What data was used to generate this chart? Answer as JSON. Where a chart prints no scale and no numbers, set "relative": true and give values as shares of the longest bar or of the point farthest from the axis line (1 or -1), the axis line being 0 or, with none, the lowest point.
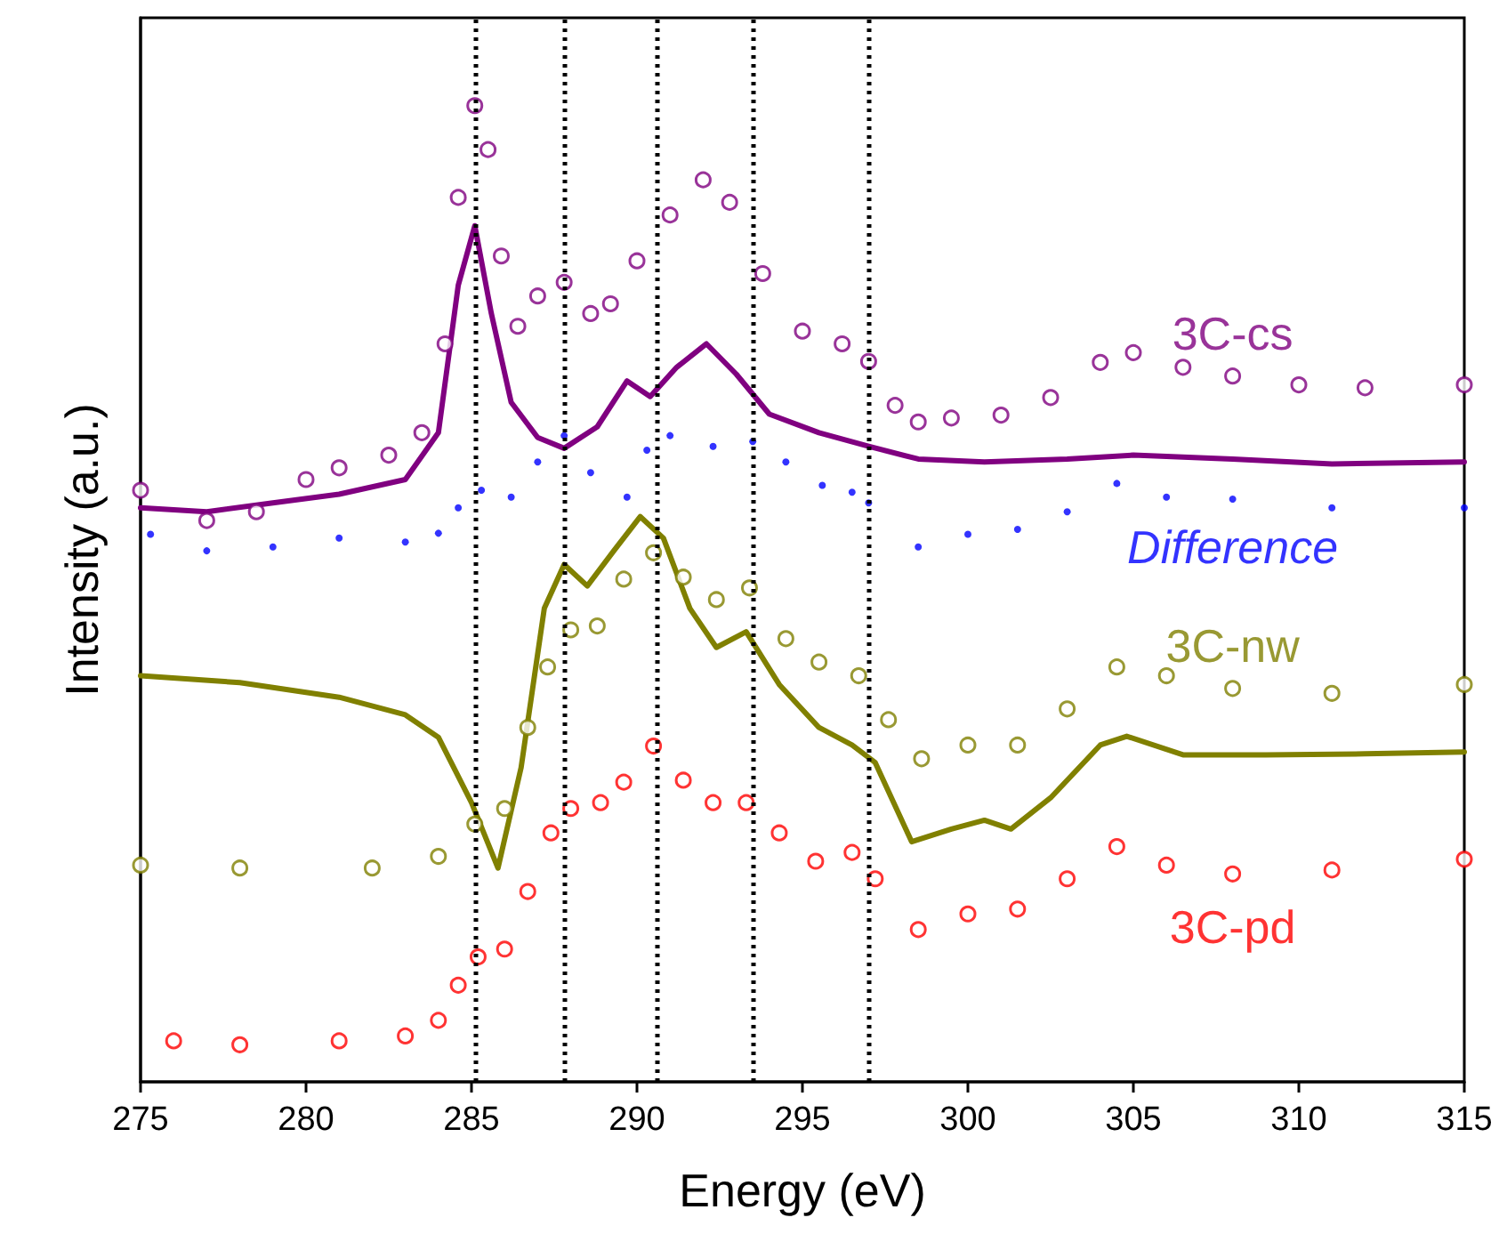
{
  "chart_data": {
    "type": "line",
    "relative": true,
    "xlabel": "Energy (eV)",
    "ylabel": "Intensity (a.u.)",
    "xlim": [
      275,
      315
    ],
    "xticks": [
      275,
      280,
      285,
      290,
      295,
      300,
      305,
      310,
      315
    ],
    "tick_labels": "x",
    "ref_lines": [
      {
        "axis": "x",
        "value": 285.1,
        "color": "#000000",
        "line_style": "dotted"
      },
      {
        "axis": "x",
        "value": 287.8,
        "color": "#000000",
        "line_style": "dotted"
      },
      {
        "axis": "x",
        "value": 290.6,
        "color": "#000000",
        "line_style": "dotted"
      },
      {
        "axis": "x",
        "value": 293.5,
        "color": "#000000",
        "line_style": "dotted"
      },
      {
        "axis": "x",
        "value": 297.0,
        "color": "#000000",
        "line_style": "dotted"
      }
    ],
    "series": [
      {
        "name": "3C-cs",
        "type": "scatter",
        "marker": "circle",
        "color": "#800080",
        "x": [
          275,
          277,
          278.5,
          280,
          281,
          282.5,
          283.5,
          284.2,
          284.6,
          285.1,
          285.5,
          285.9,
          286.4,
          287,
          287.8,
          288.6,
          289.2,
          290,
          291,
          292,
          292.8,
          293.8,
          295,
          296.2,
          297,
          297.8,
          298.5,
          299.5,
          301,
          302.5,
          304,
          305,
          306.5,
          308,
          310,
          312,
          315
        ],
        "values": [
          0.606,
          0.575,
          0.584,
          0.617,
          0.629,
          0.642,
          0.665,
          0.756,
          0.906,
          1,
          0.955,
          0.846,
          0.774,
          0.805,
          0.819,
          0.787,
          0.797,
          0.841,
          0.888,
          0.924,
          0.901,
          0.828,
          0.769,
          0.756,
          0.738,
          0.693,
          0.676,
          0.68,
          0.683,
          0.701,
          0.737,
          0.747,
          0.732,
          0.723,
          0.714,
          0.711,
          0.714
        ]
      },
      {
        "type": "line",
        "marker": "none",
        "color": "#800080",
        "x": [
          275,
          277,
          279,
          281,
          283,
          284,
          284.6,
          285.1,
          285.6,
          286.2,
          287,
          287.8,
          288.8,
          289.7,
          290.4,
          291.2,
          292.1,
          293,
          294,
          295.5,
          297,
          298.5,
          300.5,
          303,
          305,
          308,
          311,
          315
        ],
        "values": [
          0.588,
          0.584,
          0.593,
          0.602,
          0.617,
          0.665,
          0.816,
          0.877,
          0.787,
          0.696,
          0.66,
          0.649,
          0.671,
          0.718,
          0.702,
          0.732,
          0.756,
          0.725,
          0.684,
          0.665,
          0.651,
          0.638,
          0.635,
          0.638,
          0.642,
          0.638,
          0.633,
          0.635
        ]
      },
      {
        "name": "Difference",
        "type": "scatter",
        "marker": "circle",
        "color": "#0000ff",
        "x": [
          275.3,
          277,
          279,
          281,
          283,
          284,
          284.6,
          285.3,
          286.2,
          287,
          287.8,
          288.6,
          289.7,
          290.3,
          291,
          292.3,
          293.5,
          294.5,
          295.6,
          296.5,
          297,
          298.5,
          300,
          301.5,
          303,
          304.5,
          306,
          308,
          311,
          315
        ],
        "values": [
          0.561,
          0.544,
          0.548,
          0.557,
          0.553,
          0.562,
          0.588,
          0.606,
          0.599,
          0.635,
          0.662,
          0.624,
          0.599,
          0.647,
          0.662,
          0.651,
          0.656,
          0.635,
          0.611,
          0.604,
          0.593,
          0.548,
          0.561,
          0.566,
          0.584,
          0.613,
          0.599,
          0.597,
          0.588,
          0.588
        ]
      },
      {
        "name": "3C-nw",
        "type": "scatter",
        "marker": "circle",
        "color": "#808000",
        "x": [
          275,
          278,
          282,
          284,
          285.1,
          286,
          286.7,
          287.3,
          288,
          288.8,
          289.6,
          290.5,
          291.4,
          292.4,
          293.4,
          294.5,
          295.5,
          296.7,
          297.6,
          298.6,
          300,
          301.5,
          303,
          304.5,
          306,
          308,
          311,
          315
        ],
        "values": [
          0.222,
          0.219,
          0.219,
          0.231,
          0.264,
          0.28,
          0.363,
          0.425,
          0.463,
          0.467,
          0.515,
          0.542,
          0.517,
          0.494,
          0.506,
          0.454,
          0.43,
          0.416,
          0.371,
          0.331,
          0.345,
          0.345,
          0.382,
          0.425,
          0.416,
          0.403,
          0.398,
          0.407
        ]
      },
      {
        "type": "line",
        "marker": "none",
        "color": "#808000",
        "x": [
          275,
          278,
          281,
          283,
          284,
          285,
          285.8,
          286.5,
          287.2,
          287.8,
          288.5,
          289.3,
          290.1,
          290.8,
          291.6,
          292.4,
          293.3,
          294.3,
          295.5,
          296.5,
          297.2,
          298.3,
          299.5,
          300.5,
          301.3,
          302.5,
          304,
          304.8,
          306.5,
          309,
          312,
          315
        ],
        "values": [
          0.416,
          0.409,
          0.394,
          0.376,
          0.353,
          0.286,
          0.219,
          0.322,
          0.485,
          0.53,
          0.508,
          0.544,
          0.579,
          0.557,
          0.485,
          0.445,
          0.461,
          0.407,
          0.363,
          0.345,
          0.327,
          0.246,
          0.259,
          0.268,
          0.259,
          0.291,
          0.345,
          0.354,
          0.335,
          0.335,
          0.336,
          0.338
        ]
      },
      {
        "name": "3C-pd",
        "type": "scatter",
        "marker": "circle",
        "color": "#ff0000",
        "x": [
          276,
          278,
          281,
          283,
          284,
          284.6,
          285.2,
          286,
          286.7,
          287.4,
          288,
          288.9,
          289.6,
          290.5,
          291.4,
          292.3,
          293.3,
          294.3,
          295.4,
          296.5,
          297.2,
          298.5,
          300,
          301.5,
          303,
          304.5,
          306,
          308,
          311,
          315
        ],
        "values": [
          0.042,
          0.038,
          0.042,
          0.047,
          0.063,
          0.099,
          0.128,
          0.136,
          0.195,
          0.255,
          0.28,
          0.286,
          0.307,
          0.344,
          0.309,
          0.286,
          0.286,
          0.255,
          0.226,
          0.235,
          0.208,
          0.156,
          0.172,
          0.177,
          0.208,
          0.241,
          0.222,
          0.213,
          0.217,
          0.228
        ]
      }
    ]
  }
}
